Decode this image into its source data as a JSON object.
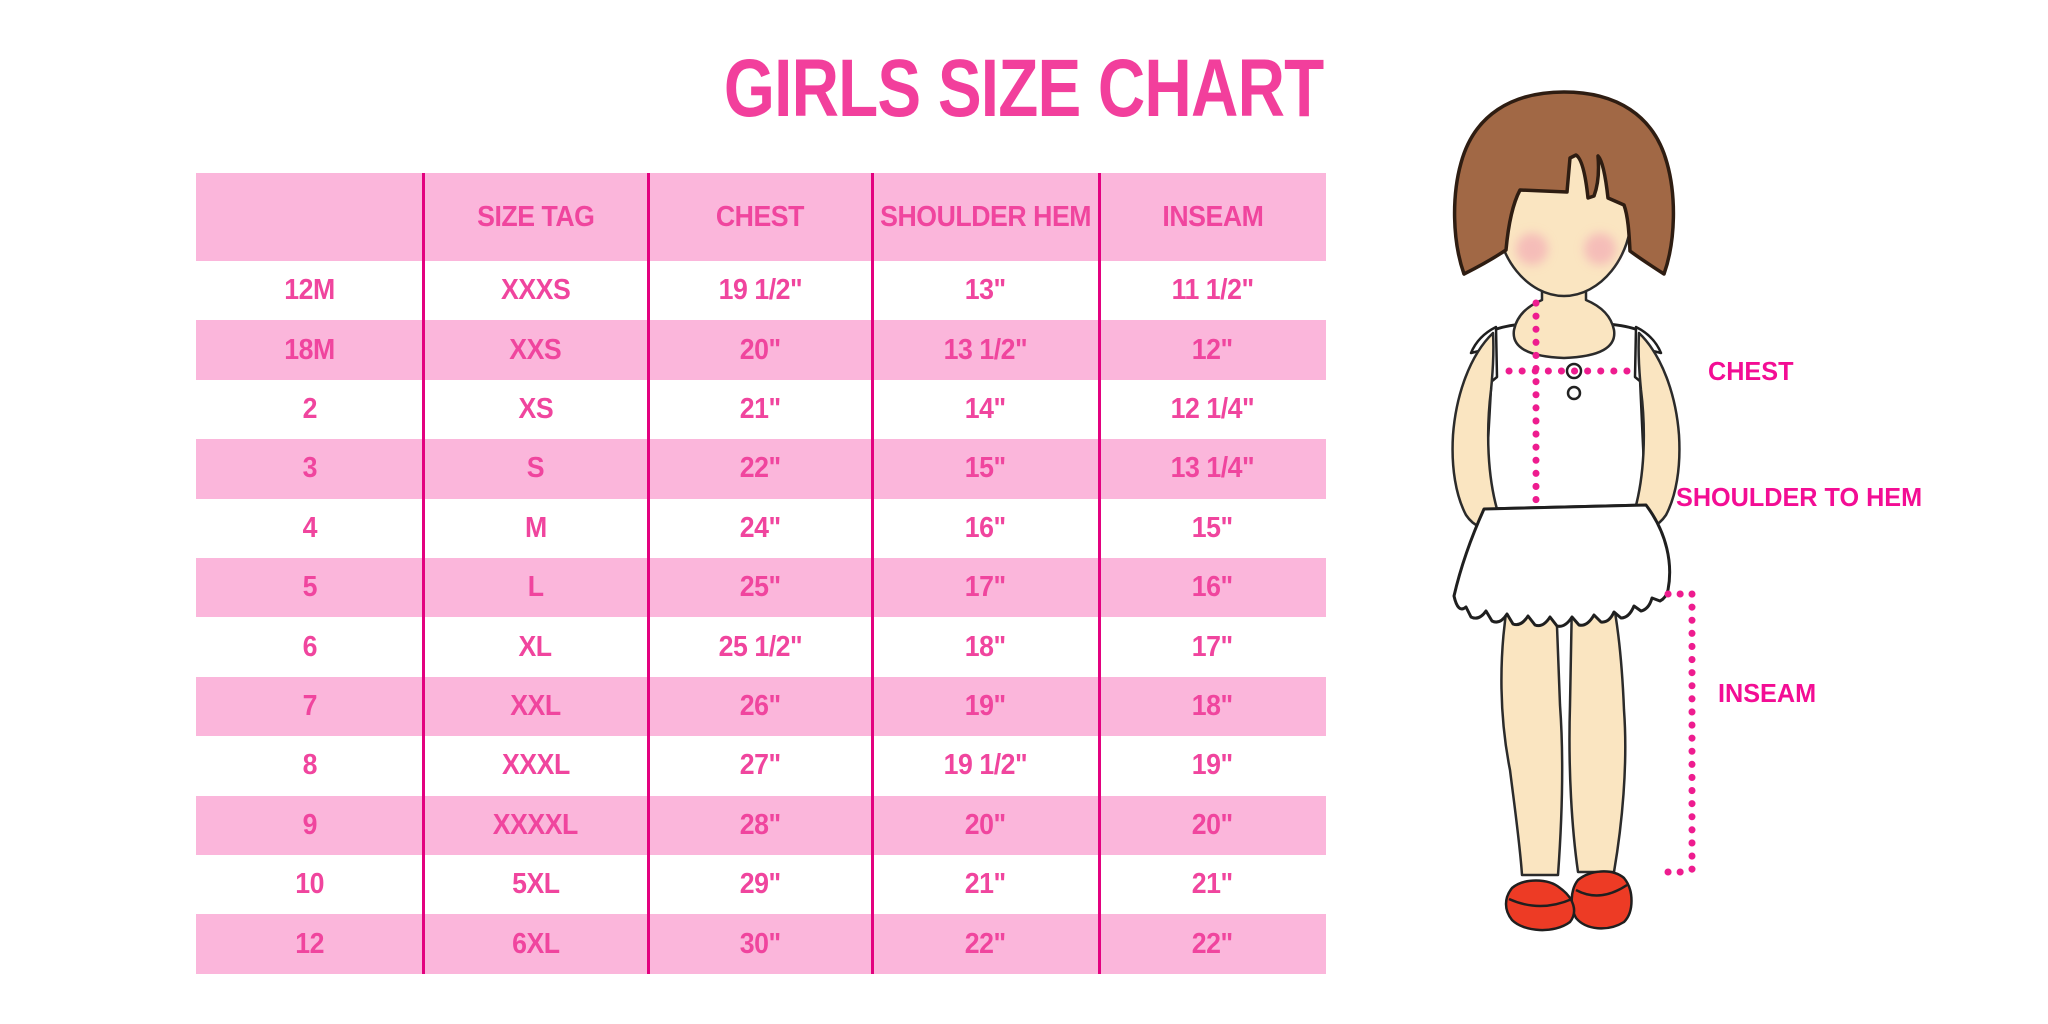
{
  "title": "GIRLS SIZE CHART",
  "chart_data": {
    "type": "table",
    "title": "GIRLS SIZE CHART",
    "columns": [
      "",
      "SIZE TAG",
      "CHEST",
      "SHOULDER HEM",
      "INSEAM"
    ],
    "rows": [
      [
        "12M",
        "XXXS",
        "19 1/2\"",
        "13\"",
        "11 1/2\""
      ],
      [
        "18M",
        "XXS",
        "20\"",
        "13 1/2\"",
        "12\""
      ],
      [
        "2",
        "XS",
        "21\"",
        "14\"",
        "12 1/4\""
      ],
      [
        "3",
        "S",
        "22\"",
        "15\"",
        "13 1/4\""
      ],
      [
        "4",
        "M",
        "24\"",
        "16\"",
        "15\""
      ],
      [
        "5",
        "L",
        "25\"",
        "17\"",
        "16\""
      ],
      [
        "6",
        "XL",
        "25 1/2\"",
        "18\"",
        "17\""
      ],
      [
        "7",
        "XXL",
        "26\"",
        "19\"",
        "18\""
      ],
      [
        "8",
        "XXXL",
        "27\"",
        "19 1/2\"",
        "19\""
      ],
      [
        "9",
        "XXXXL",
        "28\"",
        "20\"",
        "20\""
      ],
      [
        "10",
        "5XL",
        "29\"",
        "21\"",
        "21\""
      ],
      [
        "12",
        "6XL",
        "30\"",
        "22\"",
        "22\""
      ]
    ],
    "layout": {
      "row_stripe": "alternating white / pink starting white",
      "grid": "vertical magenta separators only"
    }
  },
  "diagram": {
    "labels": {
      "chest": "CHEST",
      "shoulder_to_hem": "SHOULDER TO HEM",
      "inseam": "INSEAM"
    }
  },
  "colors": {
    "accent_pink_text": "#F0459E",
    "title_pink": "#F23F9C",
    "row_fill_pink": "#FBB6DB",
    "separator_magenta": "#E3017F",
    "label_magenta": "#F30D94",
    "dotted_line_magenta": "#EE1C8F",
    "hair_brown": "#A16845",
    "skin": "#FAE5C1",
    "shoe_red": "#ED3B25"
  }
}
